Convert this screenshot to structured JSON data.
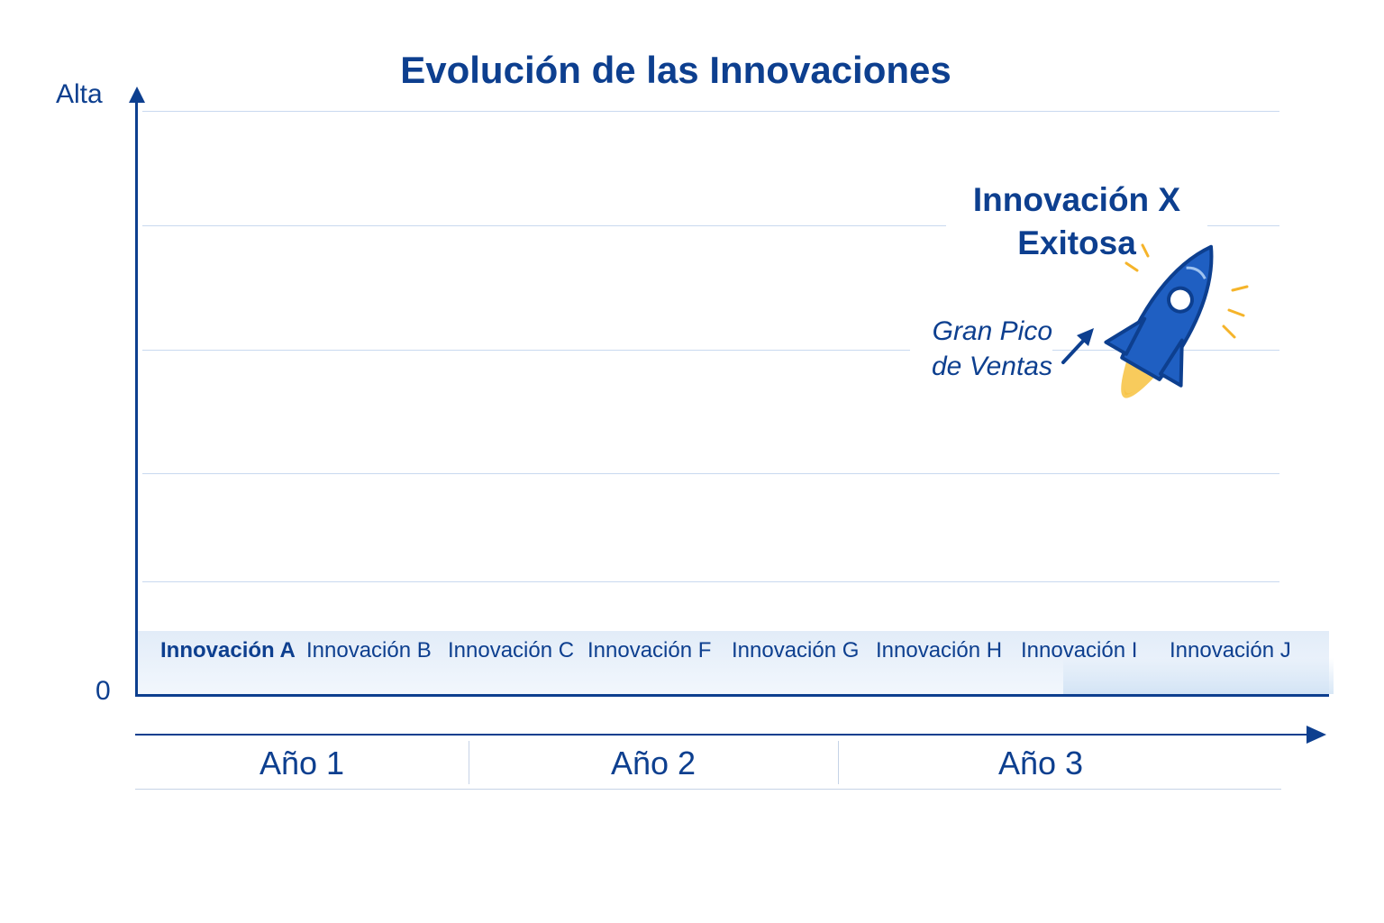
{
  "title": "Evolución de las Innovaciones",
  "y_axis": {
    "top_label": "Alta",
    "zero_label": "0"
  },
  "innovations": [
    "Innovación A",
    "Innovación B",
    "Innovación C",
    "Innovación F",
    "Innovación G",
    "Innovación H",
    "Innovación I",
    "Innovación J"
  ],
  "annotations": {
    "success_line1": "Innovación X",
    "success_line2": "Exitosa",
    "peak_line1": "Gran Pico",
    "peak_line2": "de Ventas"
  },
  "periods": [
    "Año 1",
    "Año 2",
    "Año 3"
  ],
  "colors": {
    "primary": "#0d3f8f",
    "rocket": "#1f5fc2",
    "flame": "#f5b42a"
  }
}
